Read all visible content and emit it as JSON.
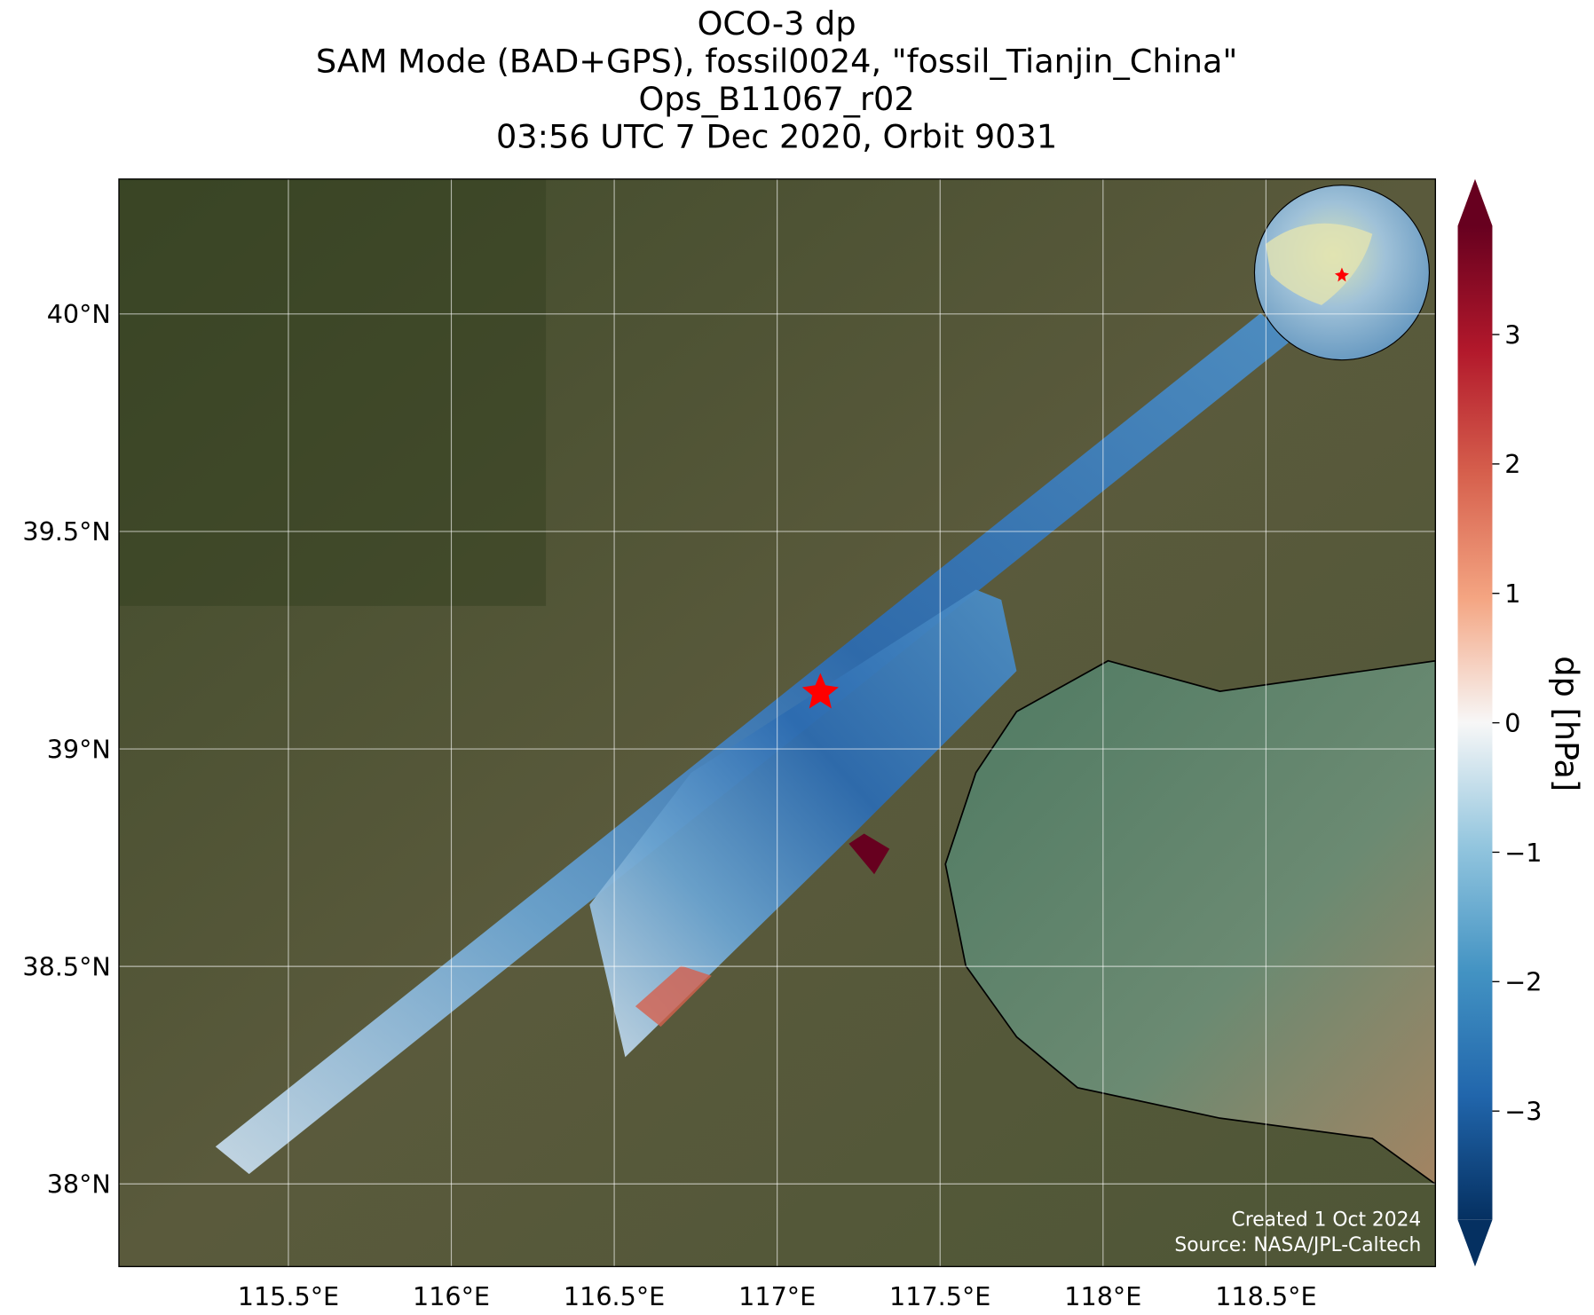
{
  "map": {
    "title": [
      "OCO-3 dp",
      "SAM Mode (BAD+GPS), fossil0024, \"fossil_Tianjin_China\"",
      "Ops_B11067_r02",
      "03:56 UTC 7 Dec 2020, Orbit 9031"
    ],
    "xlim": [
      114.98,
      119.02
    ],
    "ylim": [
      37.81,
      40.31
    ],
    "xticks": [
      {
        "value": 115.5,
        "label": "115.5°E"
      },
      {
        "value": 116,
        "label": "116°E"
      },
      {
        "value": 116.5,
        "label": "116.5°E"
      },
      {
        "value": 117,
        "label": "117°E"
      },
      {
        "value": 117.5,
        "label": "117.5°E"
      },
      {
        "value": 118,
        "label": "118°E"
      },
      {
        "value": 118.5,
        "label": "118.5°E"
      }
    ],
    "yticks": [
      {
        "value": 38,
        "label": "38°N"
      },
      {
        "value": 38.5,
        "label": "38.5°N"
      },
      {
        "value": 39,
        "label": "39°N"
      },
      {
        "value": 39.5,
        "label": "39.5°N"
      },
      {
        "value": 40,
        "label": "40°N"
      }
    ],
    "grid": true,
    "colorbar": {
      "label": "dp [hPa]",
      "lim": [
        -3.84,
        3.84
      ],
      "ticks": [
        {
          "value": -3,
          "label": "−3"
        },
        {
          "value": -2,
          "label": "−2"
        },
        {
          "value": -1,
          "label": "−1"
        },
        0,
        1,
        2,
        3
      ]
    },
    "credits": [
      "Created 1 Oct 2024",
      "Source: NASA/JPL-Caltech"
    ]
  }
}
